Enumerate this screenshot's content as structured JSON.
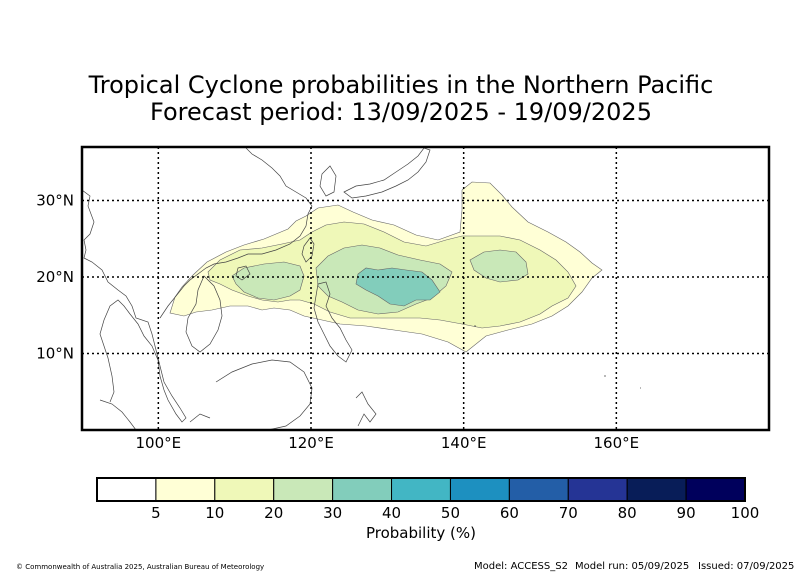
{
  "title": {
    "line1": "Tropical Cyclone probabilities in the Northern Pacific",
    "line2": "Forecast period: 13/09/2025 - 19/09/2025"
  },
  "map": {
    "lon_range": [
      90,
      180
    ],
    "lat_range": [
      0,
      37
    ],
    "lon_ticks": [
      {
        "value": 100,
        "label": "100°E"
      },
      {
        "value": 120,
        "label": "120°E"
      },
      {
        "value": 140,
        "label": "140°E"
      },
      {
        "value": 160,
        "label": "160°E"
      }
    ],
    "lat_ticks": [
      {
        "value": 10,
        "label": "10°N"
      },
      {
        "value": 20,
        "label": "20°N"
      },
      {
        "value": 30,
        "label": "30°N"
      }
    ],
    "gridlines": "dotted"
  },
  "colorbar": {
    "title": "Probability (%)",
    "ticks": [
      "5",
      "10",
      "20",
      "30",
      "40",
      "50",
      "60",
      "70",
      "80",
      "90",
      "100"
    ],
    "colors": [
      "#ffffff",
      "#ffffd6",
      "#eff8b8",
      "#c9e8b8",
      "#82cdbb",
      "#42b6c4",
      "#1d90c0",
      "#235ea7",
      "#253495",
      "#081d58",
      "#00005c"
    ]
  },
  "contour_colors": {
    "p5": "#ffffd6",
    "p10": "#eff8b8",
    "p20": "#c9e8b8",
    "p30": "#82cdbb"
  },
  "footer": {
    "credit": "© Commonwealth of Australia 2025, Australian Bureau of Meteorology",
    "model": "Model: ACCESS_S2",
    "model_run": "Model run: 05/09/2025",
    "issued": "Issued: 07/09/2025"
  }
}
